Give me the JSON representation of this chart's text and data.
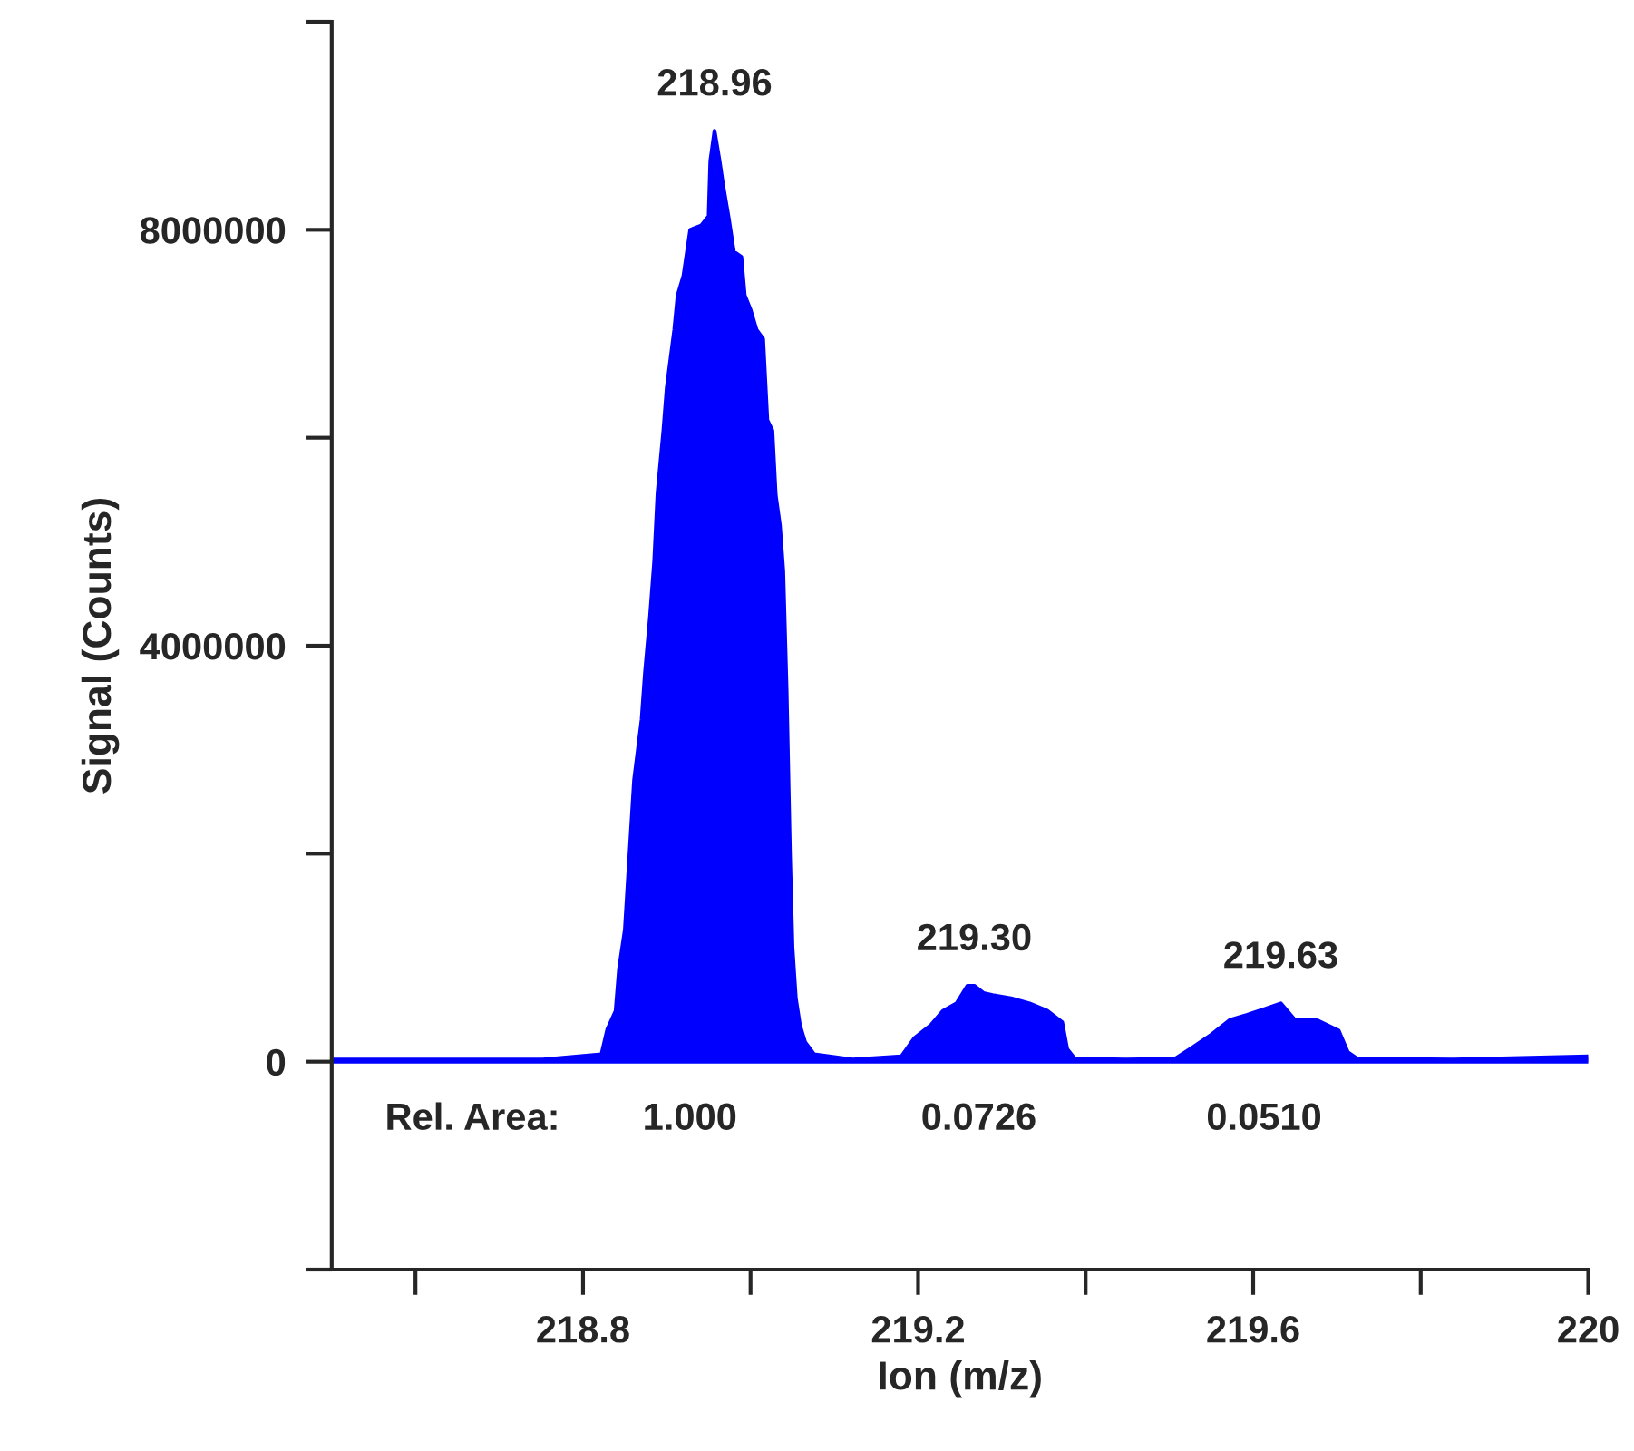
{
  "chart_data": {
    "type": "area",
    "xlabel": "Ion (m/z)",
    "ylabel": "Signal (Counts)",
    "x": [
      218.5,
      218.752,
      218.822,
      218.829,
      218.839,
      218.843,
      218.85,
      218.854,
      218.861,
      218.87,
      218.874,
      218.88,
      218.885,
      218.889,
      218.896,
      218.9,
      218.909,
      218.913,
      218.92,
      218.928,
      218.941,
      218.95,
      218.952,
      218.957,
      218.963,
      218.967,
      218.974,
      218.98,
      218.989,
      218.993,
      219.0,
      219.007,
      219.015,
      219.02,
      219.026,
      219.03,
      219.035,
      219.039,
      219.043,
      219.047,
      219.05,
      219.054,
      219.059,
      219.065,
      219.076,
      219.122,
      219.18,
      219.196,
      219.215,
      219.23,
      219.246,
      219.259,
      219.267,
      219.278,
      219.289,
      219.311,
      219.333,
      219.354,
      219.372,
      219.378,
      219.387,
      219.448,
      219.507,
      219.528,
      219.55,
      219.572,
      219.593,
      219.615,
      219.633,
      219.65,
      219.676,
      219.702,
      219.713,
      219.724,
      219.839,
      220.0
    ],
    "series": [
      {
        "color": "#0000ff",
        "values": [
          20000,
          20000,
          70000,
          310000,
          490000,
          890000,
          1270000,
          1800000,
          2710000,
          3290000,
          3740000,
          4280000,
          4810000,
          5470000,
          6070000,
          6480000,
          7040000,
          7370000,
          7560000,
          8000000,
          8040000,
          8130000,
          8660000,
          8950000,
          8660000,
          8440000,
          8110000,
          7790000,
          7740000,
          7370000,
          7230000,
          7040000,
          6950000,
          6170000,
          6070000,
          5450000,
          5160000,
          4720000,
          3580000,
          2010000,
          1100000,
          610000,
          350000,
          190000,
          70000,
          20000,
          50000,
          230000,
          350000,
          490000,
          560000,
          730000,
          730000,
          660000,
          640000,
          610000,
          560000,
          490000,
          380000,
          120000,
          30000,
          20000,
          30000,
          140000,
          260000,
          400000,
          450000,
          510000,
          560000,
          400000,
          400000,
          300000,
          90000,
          30000,
          20000,
          50000
        ]
      }
    ],
    "xlim": [
      218.5,
      220
    ],
    "xticks": [
      {
        "value": 218.6,
        "label": null
      },
      218.8,
      {
        "value": 219.0,
        "label": null
      },
      219.2,
      {
        "value": 219.4,
        "label": null
      },
      219.6,
      {
        "value": 219.8,
        "label": null
      },
      220
    ],
    "ylim": [
      -2000000,
      10000000
    ],
    "yticks": [
      {
        "value": -2000000,
        "label": null
      },
      0,
      {
        "value": 2000000,
        "label": null
      },
      4000000,
      {
        "value": 6000000,
        "label": null
      },
      8000000,
      {
        "value": 10000000,
        "label": null
      }
    ],
    "grid": false,
    "legend": false,
    "annotations": [
      {
        "text": "218.96",
        "x": 218.957,
        "y": 8950000
      },
      {
        "text": "219.30",
        "x": 219.267,
        "y": 730000
      },
      {
        "text": "219.63",
        "x": 219.633,
        "y": 560000
      },
      "Rel. Area:",
      "1.000",
      "0.0726",
      "0.0510"
    ]
  }
}
